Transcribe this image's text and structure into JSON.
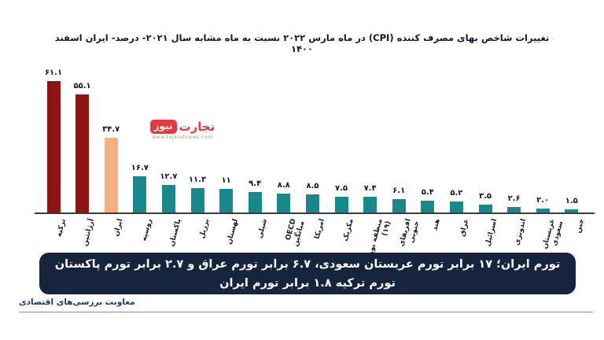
{
  "title": "تغییرات شاخص بهای مصرف کننده (CPI) در ماه مارس ۲۰۲۲ نسبت به ماه مشابه سال ۲۰۲۱- درصد- ایران اسفند ۱۴۰۰",
  "watermark": {
    "brand_first_word": "تجارت",
    "brand_second_word": "نیوز",
    "url": "www.tejaratnews.com",
    "brand_color": "#E03A3C"
  },
  "chart_data": {
    "type": "bar",
    "title": "تغییرات شاخص بهای مصرف کننده (CPI) در ماه مارس ۲۰۲۲ نسبت به ماه مشابه سال ۲۰۲۱- درصد- ایران اسفند ۱۴۰۰",
    "categories": [
      "ترکیه",
      "آرژانتین",
      "ایران",
      "روسیه",
      "پاکستان",
      "برزیل",
      "لهستان",
      "شیلی",
      "OECD\nمیانگین",
      "امریکا",
      "مکزیک",
      "منطقه یورو\n(۱۹)",
      "افریقای\nجنوبی",
      "هند",
      "عراق",
      "اسرائیل",
      "اندونزی",
      "عربستان\nسعودی",
      "چین"
    ],
    "values": [
      61.1,
      55.1,
      34.7,
      16.7,
      12.7,
      11.3,
      11,
      9.4,
      8.8,
      8.5,
      7.5,
      7.4,
      6.1,
      5.4,
      5.2,
      3.5,
      2.6,
      2.0,
      1.5
    ],
    "value_labels": [
      "۶۱.۱",
      "۵۵.۱",
      "۳۴.۷",
      "۱۶.۷",
      "۱۲.۷",
      "۱۱.۳",
      "۱۱",
      "۹.۴",
      "۸.۸",
      "۸.۵",
      "۷.۵",
      "۷.۴",
      "۶.۱",
      "۵.۴",
      "۵.۲",
      "۳.۵",
      "۲.۶",
      "۲.۰",
      "۱.۵"
    ],
    "bar_colors": [
      "#8E1313",
      "#8E1313",
      "#F3B183",
      "#17898C",
      "#17898C",
      "#17898C",
      "#17898C",
      "#17898C",
      "#17898C",
      "#17898C",
      "#17898C",
      "#17898C",
      "#17898C",
      "#17898C",
      "#17898C",
      "#17898C",
      "#17898C",
      "#17898C",
      "#17898C"
    ],
    "ylim": [
      0,
      65
    ],
    "grid": false,
    "legend": false,
    "xlabel": "",
    "ylabel": ""
  },
  "banner": {
    "line1": "تورم ایران؛ ۱۷ برابر تورم عربستان سعودی،  ۶.۷ برابر تورم عراق و ۲.۷ برابر تورم پاکستان",
    "line2": "تورم ترکیه ۱.۸ برابر تورم ایران",
    "bg_color": "#16243E"
  },
  "footer": {
    "department": "معاونت بررسی‌های اقتصادی"
  }
}
